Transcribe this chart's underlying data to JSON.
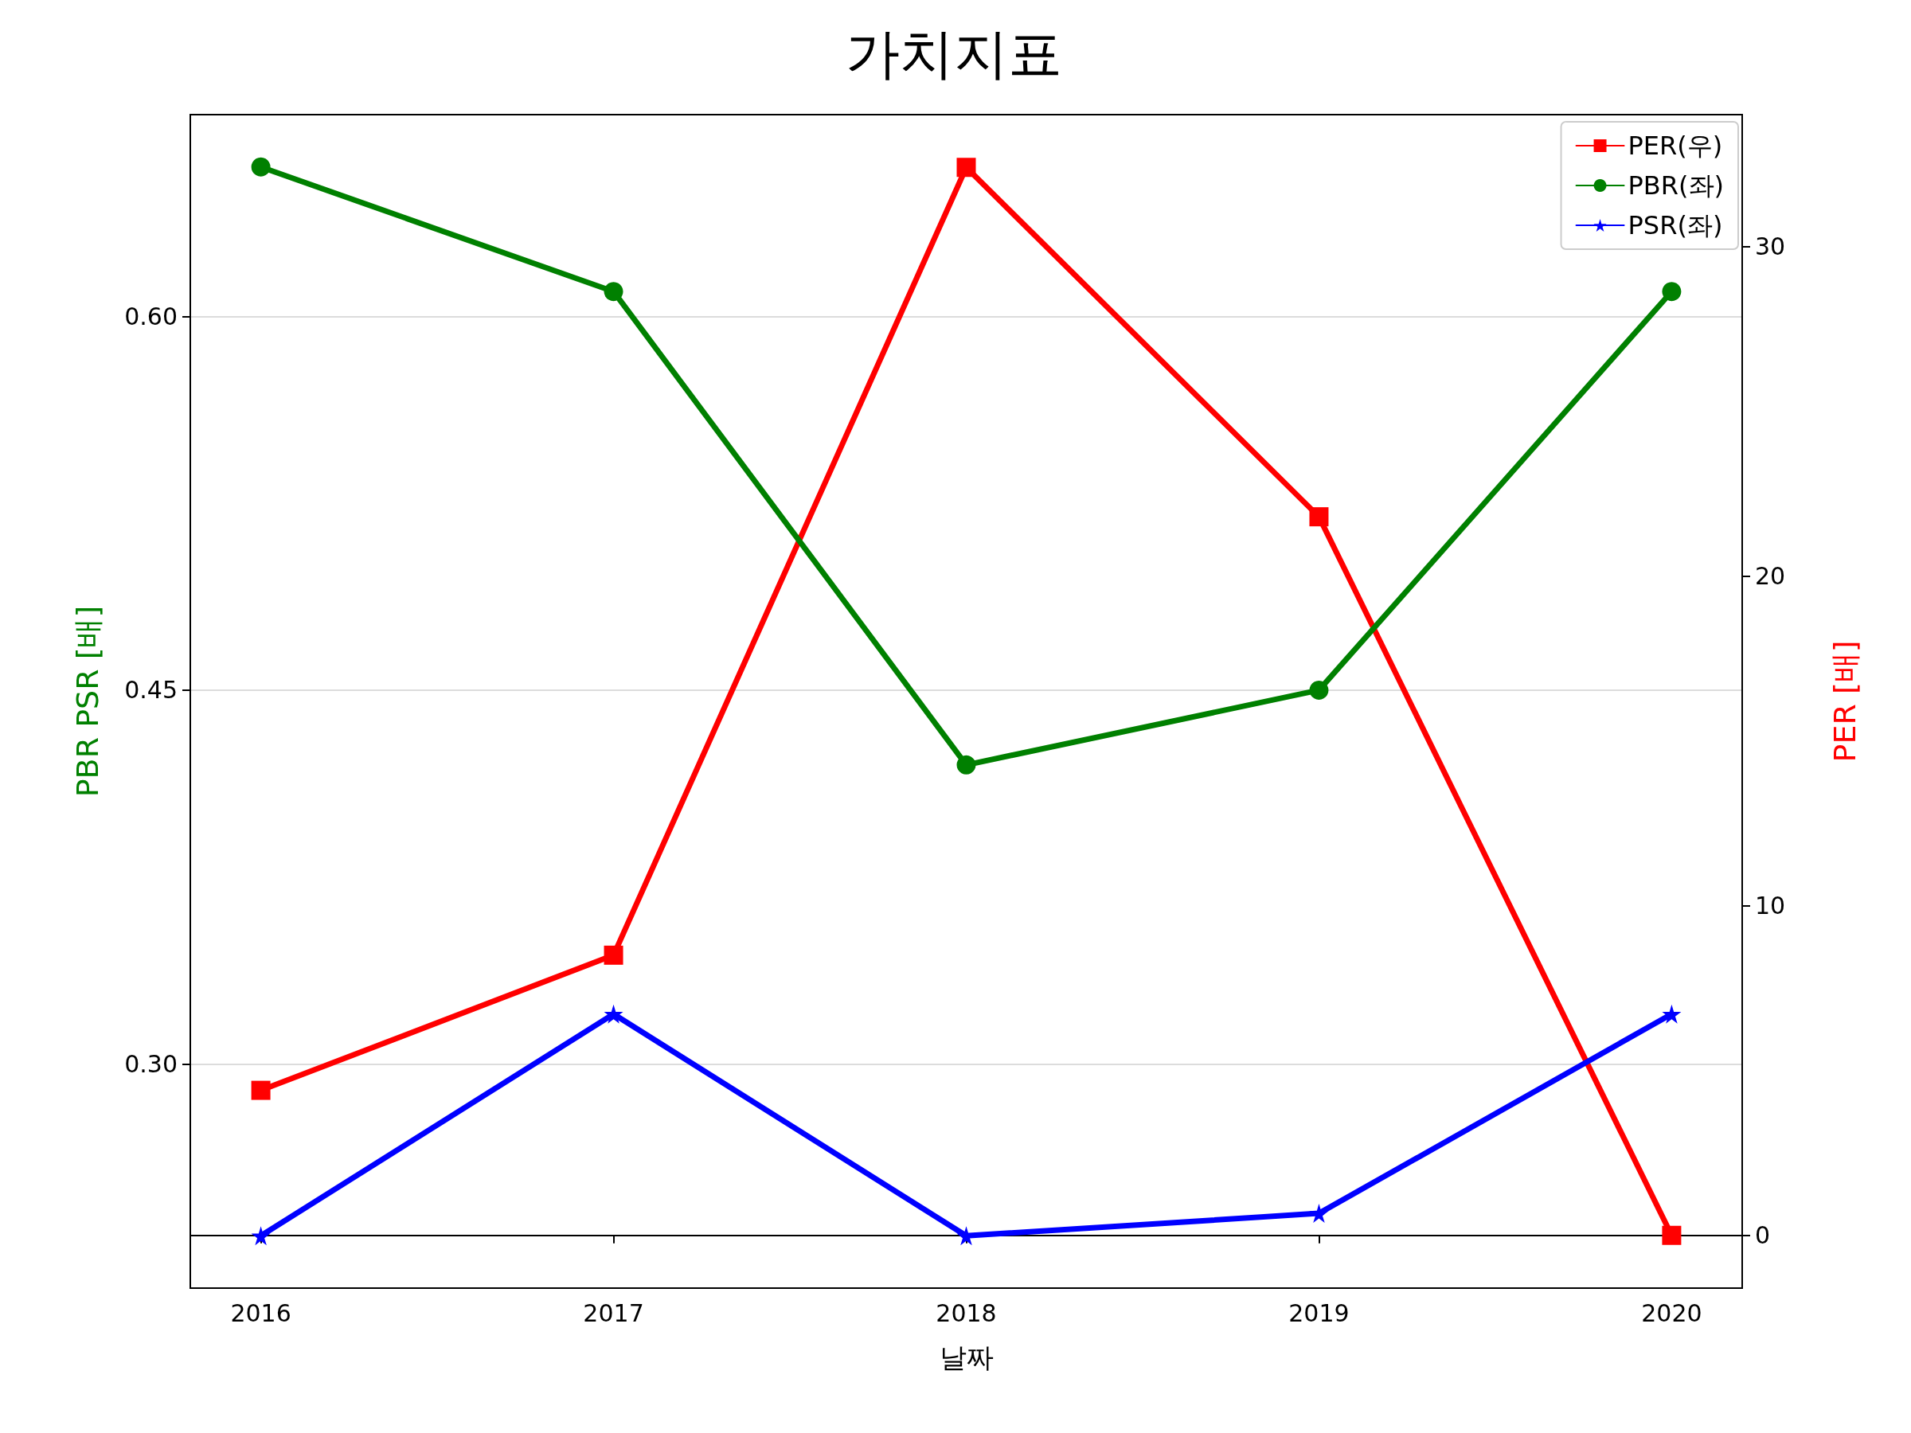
{
  "chart_data": {
    "type": "line",
    "title": "가치지표",
    "xlabel": "날짜",
    "ylabel": "PBR PSR [배]",
    "y2label": "PER [배]",
    "x": [
      2016,
      2017,
      2018,
      2019,
      2020
    ],
    "xlim": [
      2015.8,
      2020.2
    ],
    "xticks": [
      2016,
      2017,
      2018,
      2019,
      2020
    ],
    "ylim": [
      0.21,
      0.681
    ],
    "yticks": [
      {
        "value": 0.3,
        "label": "0.30"
      },
      {
        "value": 0.45,
        "label": "0.45"
      },
      {
        "value": 0.6,
        "label": "0.60"
      }
    ],
    "y2lim": [
      -1.6,
      34.0
    ],
    "y2ticks": [
      0,
      10,
      20,
      30
    ],
    "grid": "y",
    "legend": "top right",
    "series": [
      {
        "name": "PER(우)",
        "color": "#ff0000",
        "axis": "y2",
        "marker": "square",
        "values": [
          4.4,
          8.5,
          32.4,
          21.8,
          0
        ]
      },
      {
        "name": "PBR(좌)",
        "color": "#008000",
        "marker": "circle",
        "values": [
          0.66,
          0.61,
          0.42,
          0.45,
          0.61
        ]
      },
      {
        "name": "PSR(좌)",
        "color": "#0000ff",
        "marker": "star",
        "values": [
          0.231,
          0.32,
          0.231,
          0.24,
          0.32
        ]
      }
    ]
  }
}
